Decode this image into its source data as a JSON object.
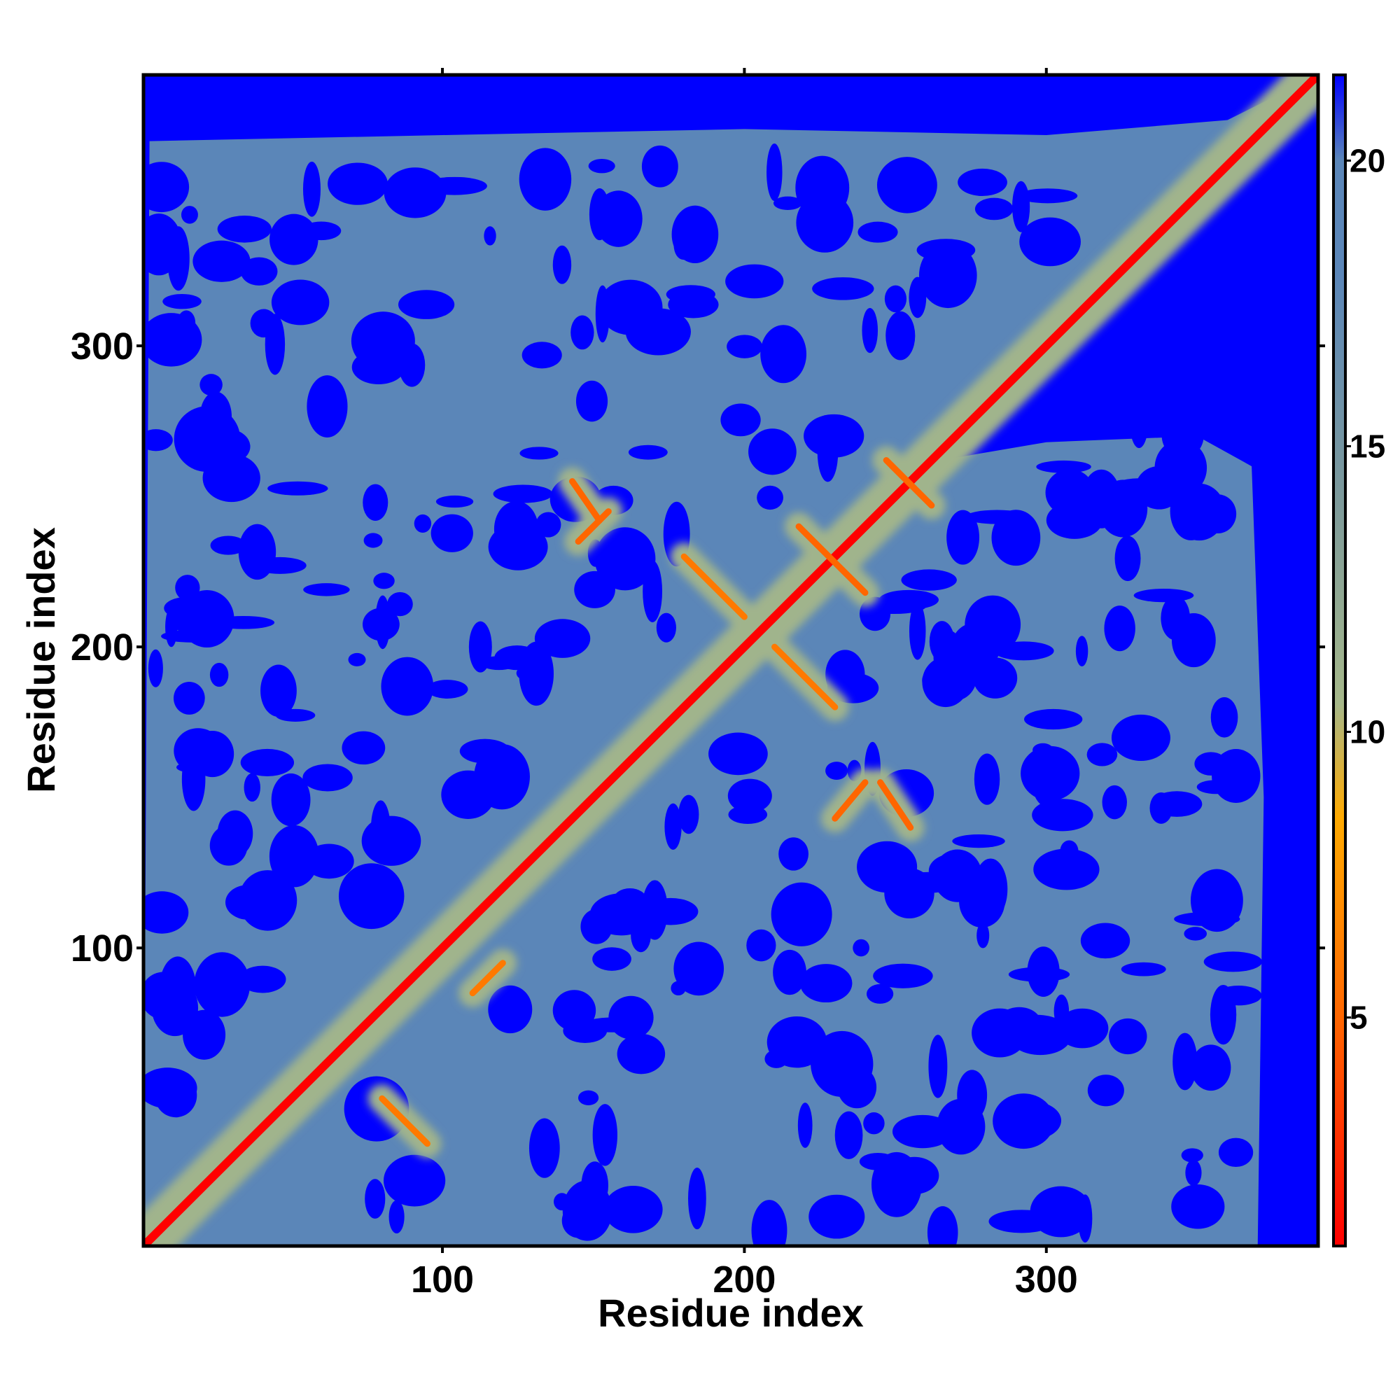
{
  "chart_data": {
    "type": "heatmap",
    "title": "",
    "xlabel": "Residue index",
    "ylabel": "Residue index",
    "xlim": [
      1,
      390
    ],
    "ylim": [
      1,
      390
    ],
    "x_ticks": [
      100,
      200,
      300
    ],
    "y_ticks": [
      100,
      200,
      300
    ],
    "colorbar": {
      "min": 1,
      "max": 21.5,
      "ticks": [
        5,
        10,
        15,
        20
      ],
      "stops": [
        {
          "value": 1,
          "color": "#ff0000"
        },
        {
          "value": 5,
          "color": "#ff6600"
        },
        {
          "value": 8.5,
          "color": "#ffaa00"
        },
        {
          "value": 10.5,
          "color": "#a6b88a"
        },
        {
          "value": 14,
          "color": "#7d9a9a"
        },
        {
          "value": 18,
          "color": "#5b86b8"
        },
        {
          "value": 20,
          "color": "#5b86b8"
        },
        {
          "value": 21.5,
          "color": "#0000ff"
        }
      ]
    },
    "background_value": 21.5,
    "colors": {
      "background": "#0000ff",
      "mid": "#5b86b8",
      "near": "#a6b88a",
      "contact": "#ff6600",
      "diagonal": "#ff0000"
    },
    "secondary_structure_contacts": [
      {
        "kind": "diagonal",
        "from": [
          1,
          1
        ],
        "to": [
          390,
          390
        ],
        "value": 1
      },
      {
        "kind": "anti-diagonal",
        "from": [
          143,
          255
        ],
        "to": [
          152,
          242
        ],
        "value": 5
      },
      {
        "kind": "anti-diagonal",
        "from": [
          145,
          235
        ],
        "to": [
          155,
          245
        ],
        "value": 5
      },
      {
        "kind": "anti-diagonal",
        "from": [
          218,
          240
        ],
        "to": [
          240,
          218
        ],
        "value": 5
      },
      {
        "kind": "anti-diagonal",
        "from": [
          247,
          262
        ],
        "to": [
          262,
          247
        ],
        "value": 5
      },
      {
        "kind": "anti-diagonal",
        "from": [
          230,
          143
        ],
        "to": [
          240,
          155
        ],
        "value": 5
      },
      {
        "kind": "anti-diagonal",
        "from": [
          245,
          155
        ],
        "to": [
          255,
          140
        ],
        "value": 5
      },
      {
        "kind": "anti-diagonal",
        "from": [
          80,
          50
        ],
        "to": [
          95,
          35
        ],
        "value": 6
      },
      {
        "kind": "anti-diagonal",
        "from": [
          110,
          85
        ],
        "to": [
          120,
          95
        ],
        "value": 6
      },
      {
        "kind": "anti-diagonal",
        "from": [
          180,
          230
        ],
        "to": [
          200,
          210
        ],
        "value": 6
      },
      {
        "kind": "anti-diagonal",
        "from": [
          210,
          200
        ],
        "to": [
          230,
          180
        ],
        "value": 6
      }
    ],
    "blue_regions_note": "distances above 20 shown as solid blue"
  }
}
